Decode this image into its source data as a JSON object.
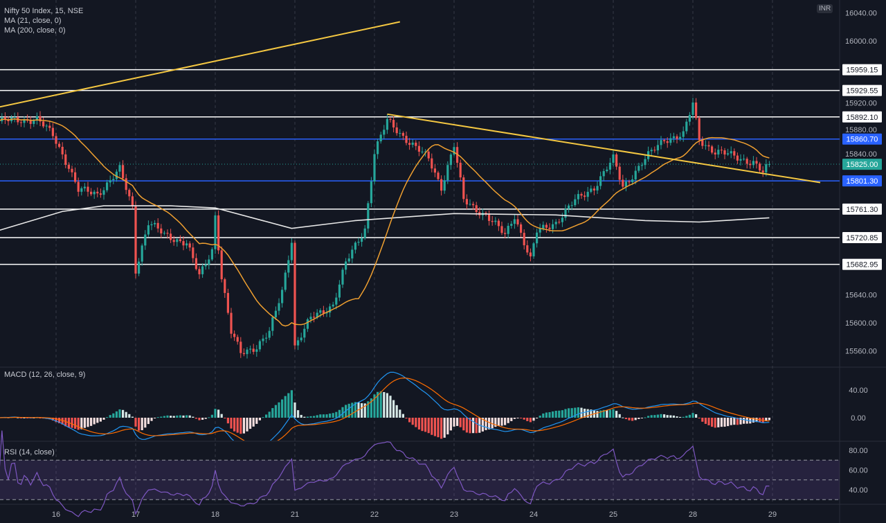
{
  "legend": {
    "symbol": "Nifty 50 Index, 15, NSE",
    "ma_short": "MA (21, close, 0)",
    "ma_long": "MA (200, close, 0)",
    "macd": "MACD (12, 26, close, 9)",
    "rsi": "RSI (14, close)"
  },
  "currency_badge": "INR",
  "colors": {
    "background": "#131722",
    "up": "#26a69a",
    "down": "#ef5350",
    "ma_short": "#f0a030",
    "ma_long": "#e8e8e8",
    "trendline": "#f5c842",
    "support_resistance": "#ffffff",
    "key_level": "#2962ff",
    "macd_line": "#2196f3",
    "signal_line": "#ff6d00",
    "rsi_line": "#7e57c2"
  },
  "chart_data": {
    "type": "candlestick",
    "interval": "15",
    "x_ticks": [
      "16",
      "17",
      "18",
      "21",
      "22",
      "23",
      "24",
      "25",
      "28",
      "29"
    ],
    "y_ticks": [
      "16040.00",
      "16000.00",
      "15960.00",
      "15920.00",
      "15880.00",
      "15840.00",
      "15800.00",
      "15760.00",
      "15720.00",
      "15680.00",
      "15640.00",
      "15600.00",
      "15560.00"
    ],
    "close_path": [
      [
        "15 11:00",
        15886
      ],
      [
        "15 14:00",
        15889
      ],
      [
        "15 15:15",
        15866
      ],
      [
        "16 10:15",
        15822
      ],
      [
        "16 11:00",
        15788
      ],
      [
        "16 12:30",
        15783
      ],
      [
        "16 14:15",
        15817
      ],
      [
        "16 15:15",
        15763
      ],
      [
        "17 09:15",
        15675
      ],
      [
        "17 10:15",
        15743
      ],
      [
        "17 11:30",
        15724
      ],
      [
        "17 13:15",
        15714
      ],
      [
        "17 14:15",
        15665
      ],
      [
        "17 15:15",
        15704
      ],
      [
        "18 09:15",
        15753
      ],
      [
        "18 09:45",
        15665
      ],
      [
        "18 10:30",
        15586
      ],
      [
        "18 11:15",
        15557
      ],
      [
        "18 12:30",
        15567
      ],
      [
        "18 13:30",
        15586
      ],
      [
        "18 14:30",
        15645
      ],
      [
        "18 15:15",
        15719
      ],
      [
        "21 09:15",
        15567
      ],
      [
        "21 10:30",
        15606
      ],
      [
        "21 12:15",
        15626
      ],
      [
        "21 13:15",
        15684
      ],
      [
        "21 14:45",
        15734
      ],
      [
        "22 09:15",
        15842
      ],
      [
        "22 10:15",
        15886
      ],
      [
        "22 11:45",
        15861
      ],
      [
        "22 13:30",
        15832
      ],
      [
        "22 14:30",
        15793
      ],
      [
        "23 09:15",
        15852
      ],
      [
        "23 10:00",
        15773
      ],
      [
        "23 11:45",
        15753
      ],
      [
        "23 13:15",
        15724
      ],
      [
        "23 14:00",
        15753
      ],
      [
        "23 15:15",
        15689
      ],
      [
        "24 09:30",
        15729
      ],
      [
        "24 11:00",
        15743
      ],
      [
        "24 12:30",
        15773
      ],
      [
        "24 14:00",
        15793
      ],
      [
        "25 09:15",
        15832
      ],
      [
        "25 10:00",
        15793
      ],
      [
        "25 11:45",
        15832
      ],
      [
        "25 13:15",
        15861
      ],
      [
        "25 14:45",
        15866
      ],
      [
        "28 09:15",
        15911
      ],
      [
        "28 09:45",
        15861
      ],
      [
        "28 11:00",
        15842
      ],
      [
        "28 12:30",
        15837
      ],
      [
        "28 14:00",
        15827
      ],
      [
        "28 14:45",
        15812
      ],
      [
        "28 15:15",
        15825
      ]
    ],
    "ma200_path": [
      [
        "15 11:00",
        15731
      ],
      [
        "16 09:45",
        15758
      ],
      [
        "16 13:00",
        15766
      ],
      [
        "17 12:00",
        15766
      ],
      [
        "18 09:15",
        15763
      ],
      [
        "18 15:15",
        15734
      ],
      [
        "21 14:00",
        15745
      ],
      [
        "23 09:15",
        15755
      ],
      [
        "24 11:00",
        15753
      ],
      [
        "25 11:45",
        15745
      ],
      [
        "28 09:45",
        15743
      ],
      [
        "28 15:15",
        15749
      ]
    ],
    "horizontal_levels": [
      {
        "price": 15959.15,
        "label": "15959.15",
        "kind": "white"
      },
      {
        "price": 15929.55,
        "label": "15929.55",
        "kind": "white"
      },
      {
        "price": 15892.1,
        "label": "15892.10",
        "kind": "white"
      },
      {
        "price": 15860.7,
        "label": "15860.70",
        "kind": "blue"
      },
      {
        "price": 15801.3,
        "label": "15801.30",
        "kind": "blue"
      },
      {
        "price": 15761.3,
        "label": "15761.30",
        "kind": "white"
      },
      {
        "price": 15720.85,
        "label": "15720.85",
        "kind": "white"
      },
      {
        "price": 15682.95,
        "label": "15682.95",
        "kind": "white"
      }
    ],
    "last_price": {
      "price": 15825.0,
      "label": "15825.00"
    },
    "trendlines": [
      {
        "from": [
          "15 11:00",
          15906
        ],
        "to": [
          "22 11:15",
          16027
        ]
      },
      {
        "from": [
          "22 10:15",
          15896
        ],
        "to": [
          "29 13:00",
          15799
        ]
      }
    ],
    "macd": {
      "params": [
        12,
        26,
        9
      ],
      "y_ticks": [
        "40.00",
        "0.00"
      ]
    },
    "rsi": {
      "period": 14,
      "y_ticks": [
        "80.00",
        "60.00",
        "40.00"
      ],
      "bands": [
        70,
        50,
        30
      ]
    }
  }
}
